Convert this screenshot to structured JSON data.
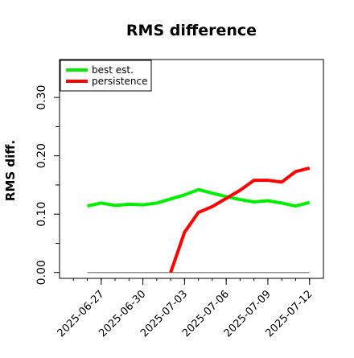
{
  "chart_data": {
    "type": "line",
    "title": "RMS difference",
    "ylabel": "RMS diff.",
    "xlabel": "",
    "ylim": [
      -0.01,
      0.365
    ],
    "xlim": [
      "2025-06-24",
      "2025-07-13"
    ],
    "yticks": [
      0.0,
      0.1,
      0.2,
      0.3
    ],
    "ytick_labels": [
      "0.00",
      "0.10",
      "0.20",
      "0.30"
    ],
    "xticks": [
      "2025-06-27",
      "2025-06-30",
      "2025-07-03",
      "2025-07-06",
      "2025-07-09",
      "2025-07-12"
    ],
    "xtick_labels": [
      "2025-06-27",
      "2025-06-30",
      "2025-07-03",
      "2025-07-06",
      "2025-07-09",
      "2025-07-12"
    ],
    "grid": false,
    "legend_position": "top-left",
    "baseline": {
      "y": 0.0,
      "x_start": "2025-06-26",
      "x_end": "2025-07-12",
      "color": "#7f7f7f"
    },
    "series": [
      {
        "name": "best est.",
        "color": "#00ee00",
        "x": [
          "2025-06-26",
          "2025-06-27",
          "2025-06-28",
          "2025-06-29",
          "2025-06-30",
          "2025-07-01",
          "2025-07-02",
          "2025-07-03",
          "2025-07-04",
          "2025-07-05",
          "2025-07-06",
          "2025-07-07",
          "2025-07-08",
          "2025-07-09",
          "2025-07-10",
          "2025-07-11",
          "2025-07-12"
        ],
        "values": [
          0.114,
          0.119,
          0.115,
          0.117,
          0.116,
          0.119,
          0.126,
          0.133,
          0.142,
          0.136,
          0.13,
          0.125,
          0.121,
          0.123,
          0.119,
          0.114,
          0.12
        ]
      },
      {
        "name": "persistence",
        "color": "#ff0000",
        "x": [
          "2025-07-02",
          "2025-07-03",
          "2025-07-04",
          "2025-07-05",
          "2025-07-06",
          "2025-07-07",
          "2025-07-08",
          "2025-07-09",
          "2025-07-10",
          "2025-07-11",
          "2025-07-12"
        ],
        "values": [
          0.0,
          0.069,
          0.103,
          0.113,
          0.127,
          0.141,
          0.158,
          0.158,
          0.155,
          0.173,
          0.179
        ]
      }
    ]
  }
}
